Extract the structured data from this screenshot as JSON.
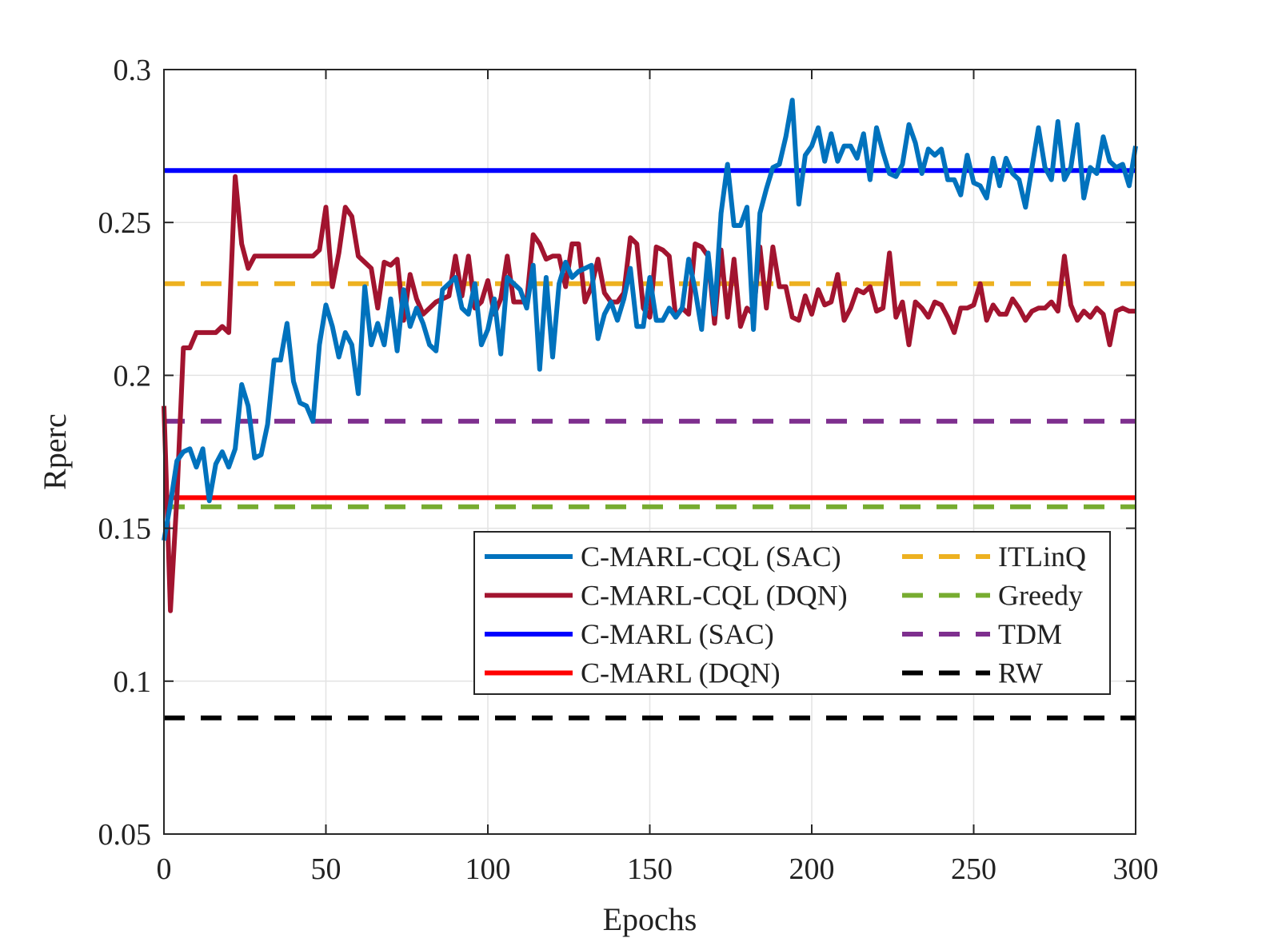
{
  "chart_data": {
    "type": "line",
    "title": "",
    "xlabel": "Epochs",
    "ylabel": "Rperc",
    "xlim": [
      0,
      300
    ],
    "ylim": [
      0.05,
      0.3
    ],
    "xticks": [
      0,
      50,
      100,
      150,
      200,
      250,
      300
    ],
    "xtick_labels": [
      "0",
      "50",
      "100",
      "150",
      "200",
      "250",
      "300"
    ],
    "yticks": [
      0.05,
      0.1,
      0.15,
      0.2,
      0.25,
      0.3
    ],
    "ytick_labels": [
      "0.05",
      "0.1",
      "0.15",
      "0.2",
      "0.25",
      "0.3"
    ],
    "grid": true,
    "legend_position": "lower-right",
    "series": [
      {
        "name": "C-MARL-CQL (SAC)",
        "color": "#0072BD",
        "style": "solid",
        "x": [
          0,
          2,
          4,
          6,
          8,
          10,
          12,
          14,
          16,
          18,
          20,
          22,
          24,
          26,
          28,
          30,
          32,
          34,
          36,
          38,
          40,
          42,
          44,
          46,
          48,
          50,
          52,
          54,
          56,
          58,
          60,
          62,
          64,
          66,
          68,
          70,
          72,
          74,
          76,
          78,
          80,
          82,
          84,
          86,
          88,
          90,
          92,
          94,
          96,
          98,
          100,
          102,
          104,
          106,
          108,
          110,
          112,
          114,
          116,
          118,
          120,
          122,
          124,
          126,
          128,
          130,
          132,
          134,
          136,
          138,
          140,
          142,
          144,
          146,
          148,
          150,
          152,
          154,
          156,
          158,
          160,
          162,
          164,
          166,
          168,
          170,
          172,
          174,
          176,
          178,
          180,
          182,
          184,
          186,
          188,
          190,
          192,
          194,
          196,
          198,
          200,
          202,
          204,
          206,
          208,
          210,
          212,
          214,
          216,
          218,
          220,
          222,
          224,
          226,
          228,
          230,
          232,
          234,
          236,
          238,
          240,
          242,
          244,
          246,
          248,
          250,
          252,
          254,
          256,
          258,
          260,
          262,
          264,
          266,
          268,
          270,
          272,
          274,
          276,
          278,
          280,
          282,
          284,
          286,
          288,
          290,
          292,
          294,
          296,
          298,
          300
        ],
        "values": [
          0.146,
          0.158,
          0.172,
          0.175,
          0.176,
          0.17,
          0.176,
          0.159,
          0.171,
          0.175,
          0.17,
          0.176,
          0.197,
          0.19,
          0.173,
          0.174,
          0.184,
          0.205,
          0.205,
          0.217,
          0.198,
          0.191,
          0.19,
          0.185,
          0.21,
          0.223,
          0.216,
          0.206,
          0.214,
          0.21,
          0.194,
          0.229,
          0.21,
          0.217,
          0.21,
          0.225,
          0.208,
          0.228,
          0.216,
          0.222,
          0.217,
          0.21,
          0.208,
          0.228,
          0.23,
          0.232,
          0.222,
          0.22,
          0.23,
          0.21,
          0.215,
          0.225,
          0.207,
          0.232,
          0.23,
          0.228,
          0.222,
          0.236,
          0.202,
          0.232,
          0.206,
          0.23,
          0.237,
          0.232,
          0.234,
          0.235,
          0.236,
          0.212,
          0.22,
          0.224,
          0.218,
          0.225,
          0.235,
          0.216,
          0.216,
          0.232,
          0.218,
          0.218,
          0.222,
          0.219,
          0.222,
          0.238,
          0.228,
          0.215,
          0.24,
          0.22,
          0.253,
          0.269,
          0.249,
          0.249,
          0.255,
          0.215,
          0.253,
          0.261,
          0.268,
          0.269,
          0.278,
          0.29,
          0.256,
          0.272,
          0.275,
          0.281,
          0.27,
          0.279,
          0.27,
          0.275,
          0.275,
          0.271,
          0.279,
          0.264,
          0.281,
          0.273,
          0.266,
          0.265,
          0.269,
          0.282,
          0.276,
          0.266,
          0.274,
          0.272,
          0.274,
          0.264,
          0.264,
          0.259,
          0.272,
          0.263,
          0.262,
          0.258,
          0.271,
          0.262,
          0.271,
          0.266,
          0.264,
          0.255,
          0.268,
          0.281,
          0.268,
          0.264,
          0.283,
          0.264,
          0.268,
          0.282,
          0.258,
          0.268,
          0.266,
          0.278,
          0.27,
          0.268,
          0.269,
          0.262,
          0.275
        ]
      },
      {
        "name": "C-MARL-CQL (DQN)",
        "color": "#A2142F",
        "style": "solid",
        "x": [
          0,
          2,
          4,
          6,
          8,
          10,
          12,
          14,
          16,
          18,
          20,
          22,
          24,
          26,
          28,
          30,
          32,
          34,
          36,
          38,
          40,
          42,
          44,
          46,
          48,
          50,
          52,
          54,
          56,
          58,
          60,
          62,
          64,
          66,
          68,
          70,
          72,
          74,
          76,
          78,
          80,
          82,
          84,
          86,
          88,
          90,
          92,
          94,
          96,
          98,
          100,
          102,
          104,
          106,
          108,
          110,
          112,
          114,
          116,
          118,
          120,
          122,
          124,
          126,
          128,
          130,
          132,
          134,
          136,
          138,
          140,
          142,
          144,
          146,
          148,
          150,
          152,
          154,
          156,
          158,
          160,
          162,
          164,
          166,
          168,
          170,
          172,
          174,
          176,
          178,
          180,
          182,
          184,
          186,
          188,
          190,
          192,
          194,
          196,
          198,
          200,
          202,
          204,
          206,
          208,
          210,
          212,
          214,
          216,
          218,
          220,
          222,
          224,
          226,
          228,
          230,
          232,
          234,
          236,
          238,
          240,
          242,
          244,
          246,
          248,
          250,
          252,
          254,
          256,
          258,
          260,
          262,
          264,
          266,
          268,
          270,
          272,
          274,
          276,
          278,
          280,
          282,
          284,
          286,
          288,
          290,
          292,
          294,
          296,
          298,
          300
        ],
        "values": [
          0.19,
          0.123,
          0.16,
          0.209,
          0.209,
          0.214,
          0.214,
          0.214,
          0.214,
          0.216,
          0.214,
          0.265,
          0.243,
          0.235,
          0.239,
          0.239,
          0.239,
          0.239,
          0.239,
          0.239,
          0.239,
          0.239,
          0.239,
          0.239,
          0.241,
          0.255,
          0.229,
          0.24,
          0.255,
          0.252,
          0.239,
          0.237,
          0.235,
          0.222,
          0.237,
          0.236,
          0.238,
          0.218,
          0.233,
          0.225,
          0.22,
          0.222,
          0.224,
          0.225,
          0.226,
          0.239,
          0.226,
          0.239,
          0.222,
          0.224,
          0.231,
          0.22,
          0.225,
          0.239,
          0.224,
          0.224,
          0.224,
          0.246,
          0.243,
          0.238,
          0.239,
          0.239,
          0.229,
          0.243,
          0.243,
          0.224,
          0.229,
          0.238,
          0.227,
          0.224,
          0.224,
          0.227,
          0.245,
          0.243,
          0.222,
          0.219,
          0.242,
          0.241,
          0.239,
          0.219,
          0.222,
          0.22,
          0.243,
          0.242,
          0.239,
          0.217,
          0.241,
          0.219,
          0.238,
          0.216,
          0.222,
          0.22,
          0.242,
          0.222,
          0.242,
          0.229,
          0.229,
          0.219,
          0.218,
          0.226,
          0.22,
          0.228,
          0.223,
          0.224,
          0.233,
          0.218,
          0.222,
          0.228,
          0.227,
          0.229,
          0.221,
          0.222,
          0.24,
          0.219,
          0.224,
          0.21,
          0.224,
          0.222,
          0.219,
          0.224,
          0.223,
          0.219,
          0.214,
          0.222,
          0.222,
          0.223,
          0.23,
          0.218,
          0.223,
          0.22,
          0.22,
          0.225,
          0.222,
          0.218,
          0.221,
          0.222,
          0.222,
          0.224,
          0.221,
          0.239,
          0.223,
          0.218,
          0.221,
          0.219,
          0.222,
          0.22,
          0.21,
          0.221,
          0.222,
          0.221,
          0.221
        ]
      },
      {
        "name": "C-MARL (SAC)",
        "color": "#0000FF",
        "style": "solid",
        "x": [
          0,
          300
        ],
        "values": [
          0.267,
          0.267
        ]
      },
      {
        "name": "C-MARL (DQN)",
        "color": "#FF0000",
        "style": "solid",
        "x": [
          0,
          300
        ],
        "values": [
          0.16,
          0.16
        ]
      },
      {
        "name": "ITLinQ",
        "color": "#EDB120",
        "style": "dashed",
        "x": [
          0,
          300
        ],
        "values": [
          0.23,
          0.23
        ]
      },
      {
        "name": "Greedy",
        "color": "#77AC30",
        "style": "dashed",
        "x": [
          0,
          300
        ],
        "values": [
          0.157,
          0.157
        ]
      },
      {
        "name": "TDM",
        "color": "#7E2F8E",
        "style": "dashed",
        "x": [
          0,
          300
        ],
        "values": [
          0.185,
          0.185
        ]
      },
      {
        "name": "RW",
        "color": "#000000",
        "style": "dashed",
        "x": [
          0,
          300
        ],
        "values": [
          0.088,
          0.088
        ]
      }
    ]
  }
}
